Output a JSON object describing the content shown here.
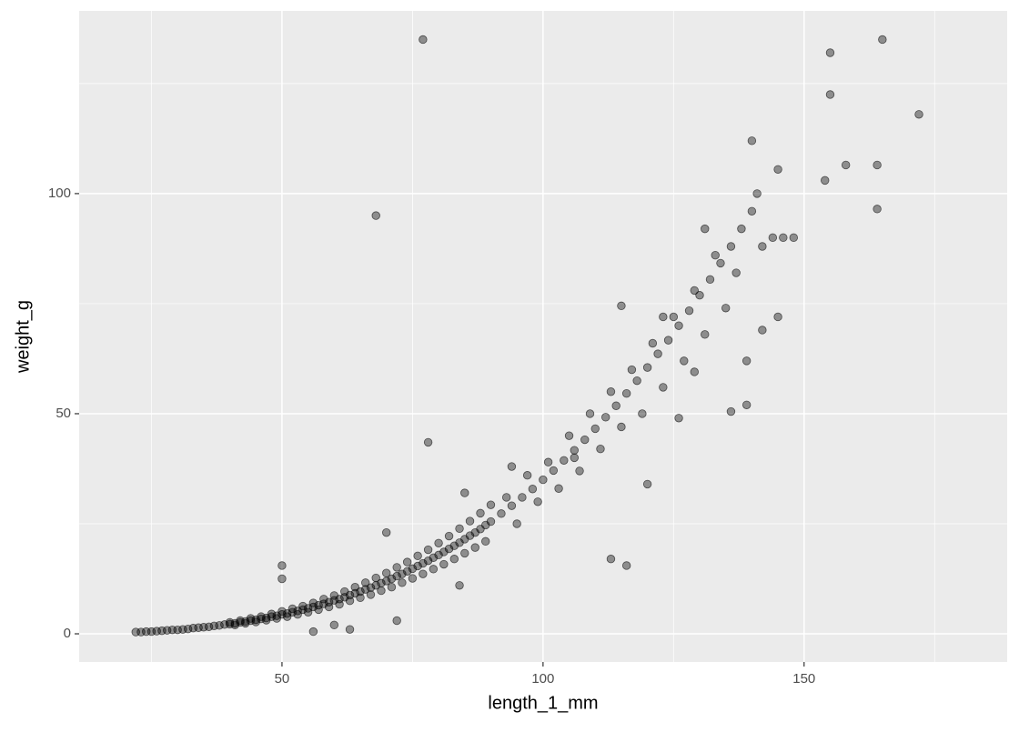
{
  "chart_data": {
    "type": "scatter",
    "x_label": "length_1_mm",
    "y_label": "weight_g",
    "xlim": [
      11.15,
      188.9
    ],
    "ylim": [
      -6.4,
      141.5
    ],
    "xticks": [
      50,
      100,
      150
    ],
    "yticks": [
      0,
      50,
      100
    ],
    "x_minor_grid": [
      25,
      75,
      125,
      175
    ],
    "y_minor_grid": [
      25,
      75,
      125
    ],
    "grid": true,
    "color": "#000000",
    "x": [
      22,
      23,
      24,
      25,
      26,
      27,
      28,
      29,
      30,
      31,
      32,
      33,
      34,
      35,
      36,
      37,
      38,
      39,
      40,
      41,
      42,
      43,
      44,
      45,
      46,
      47,
      48,
      49,
      50,
      51,
      52,
      53,
      54,
      55,
      56,
      57,
      58,
      59,
      60,
      61,
      62,
      63,
      64,
      65,
      66,
      67,
      68,
      69,
      70,
      71,
      72,
      73,
      74,
      75,
      76,
      77,
      78,
      79,
      80,
      81,
      82,
      83,
      84,
      85,
      86,
      87,
      88,
      89,
      90,
      40,
      42,
      44,
      46,
      48,
      50,
      52,
      54,
      56,
      58,
      60,
      62,
      64,
      66,
      68,
      70,
      72,
      74,
      76,
      78,
      80,
      82,
      84,
      86,
      88,
      90,
      41,
      43,
      45,
      47,
      49,
      51,
      53,
      55,
      57,
      59,
      61,
      63,
      65,
      67,
      69,
      71,
      73,
      75,
      77,
      79,
      81,
      83,
      85,
      87,
      89,
      92,
      94,
      96,
      98,
      100,
      102,
      104,
      106,
      108,
      110,
      112,
      114,
      116,
      118,
      120,
      122,
      124,
      126,
      128,
      130,
      132,
      134,
      136,
      138,
      140,
      93,
      95,
      97,
      99,
      101,
      103,
      105,
      107,
      109,
      111,
      113,
      115,
      117,
      119,
      121,
      123,
      125,
      127,
      129,
      131,
      133,
      135,
      137,
      139,
      142,
      144,
      146,
      77,
      68,
      78,
      113,
      116,
      115,
      155,
      155,
      165,
      172,
      154,
      158,
      164,
      164,
      140,
      145,
      141,
      50,
      50,
      70,
      72,
      63,
      60,
      56,
      106,
      120,
      136,
      139,
      126,
      129,
      145,
      148,
      142,
      131,
      85,
      94,
      84,
      123
    ],
    "y": [
      0.4,
      0.4,
      0.5,
      0.5,
      0.6,
      0.7,
      0.8,
      0.9,
      0.9,
      1.0,
      1.1,
      1.3,
      1.4,
      1.5,
      1.6,
      1.8,
      1.9,
      2.1,
      2.2,
      2.4,
      2.6,
      2.8,
      3.0,
      3.2,
      3.4,
      3.6,
      3.9,
      4.1,
      4.4,
      4.6,
      4.9,
      5.2,
      5.5,
      5.8,
      6.1,
      6.5,
      6.8,
      7.2,
      7.6,
      7.9,
      8.3,
      8.8,
      9.2,
      9.6,
      10.1,
      10.5,
      11.0,
      11.5,
      12.0,
      12.5,
      13.1,
      13.6,
      14.2,
      14.8,
      15.4,
      16.0,
      16.6,
      17.3,
      17.9,
      18.6,
      19.3,
      20.0,
      20.7,
      21.5,
      22.3,
      23.0,
      23.8,
      24.7,
      25.5,
      2.6,
      3.0,
      3.5,
      3.9,
      4.5,
      5.1,
      5.7,
      6.3,
      7.0,
      7.9,
      8.7,
      9.6,
      10.6,
      11.6,
      12.7,
      13.8,
      15.1,
      16.3,
      17.7,
      19.1,
      20.6,
      22.2,
      23.9,
      25.6,
      27.4,
      29.3,
      2.0,
      2.4,
      2.7,
      3.1,
      3.5,
      3.9,
      4.4,
      4.9,
      5.5,
      6.1,
      6.7,
      7.5,
      8.2,
      8.9,
      9.8,
      10.6,
      11.6,
      12.6,
      13.6,
      14.7,
      15.8,
      17.0,
      18.3,
      19.6,
      21.0,
      27.3,
      29.1,
      31.0,
      32.9,
      35.0,
      37.1,
      39.4,
      41.7,
      44.1,
      46.6,
      49.2,
      51.8,
      54.6,
      57.5,
      60.5,
      63.6,
      66.7,
      70.0,
      73.4,
      76.9,
      80.5,
      84.2,
      88.0,
      92.0,
      96.0,
      31,
      25,
      36,
      30,
      39,
      33,
      45,
      37,
      50,
      42,
      55,
      47,
      60,
      50,
      66,
      56,
      72,
      62,
      78,
      68,
      86,
      74,
      82,
      62,
      88,
      90,
      90,
      135,
      95,
      43.5,
      17,
      15.5,
      74.5,
      132,
      122.5,
      135,
      118,
      103,
      106.5,
      106.5,
      96.5,
      112,
      105.5,
      100,
      15.5,
      12.5,
      23,
      3,
      1,
      2,
      0.5,
      40,
      34,
      50.5,
      52,
      49,
      59.5,
      72,
      90,
      69,
      92,
      32,
      38,
      11,
      72
    ]
  }
}
